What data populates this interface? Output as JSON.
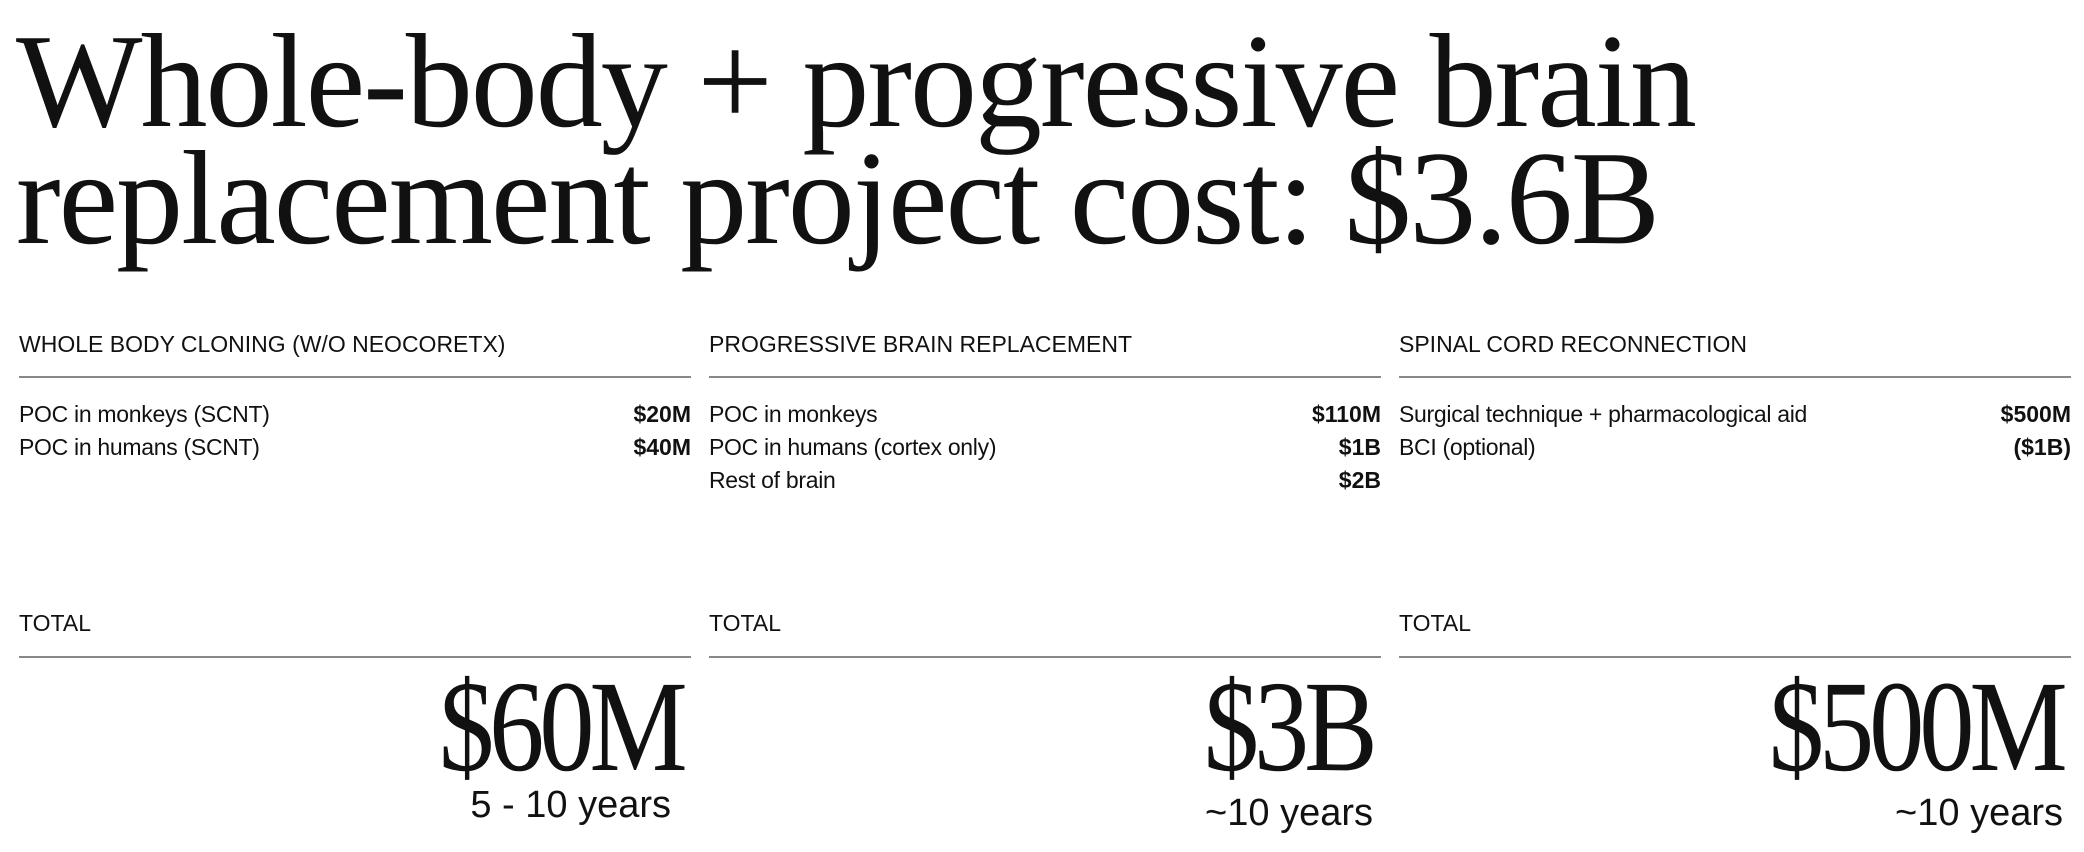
{
  "title": {
    "line1": "Whole-body + progressive brain",
    "line2": "replacement project cost: $3.6B"
  },
  "columns": [
    {
      "heading": "WHOLE BODY CLONING (W/O NEOCORETX)",
      "items": [
        {
          "label": "POC in monkeys (SCNT)",
          "value": "$20M"
        },
        {
          "label": "POC in humans (SCNT)",
          "value": "$40M"
        }
      ],
      "total_label": "TOTAL",
      "total": "$60M",
      "duration": "5 - 10 years"
    },
    {
      "heading": "PROGRESSIVE BRAIN REPLACEMENT",
      "items": [
        {
          "label": "POC in monkeys",
          "value": "$110M"
        },
        {
          "label": "POC in humans (cortex only)",
          "value": "$1B"
        },
        {
          "label": "Rest of brain",
          "value": "$2B"
        }
      ],
      "total_label": "TOTAL",
      "total": "$3B",
      "duration": "~10 years"
    },
    {
      "heading": "SPINAL CORD RECONNECTION",
      "items": [
        {
          "label": "Surgical technique + pharmacological aid",
          "value": "$500M"
        },
        {
          "label": "BCI (optional)",
          "value": "($1B)"
        }
      ],
      "total_label": "TOTAL",
      "total": "$500M",
      "duration": "~10 years"
    }
  ]
}
